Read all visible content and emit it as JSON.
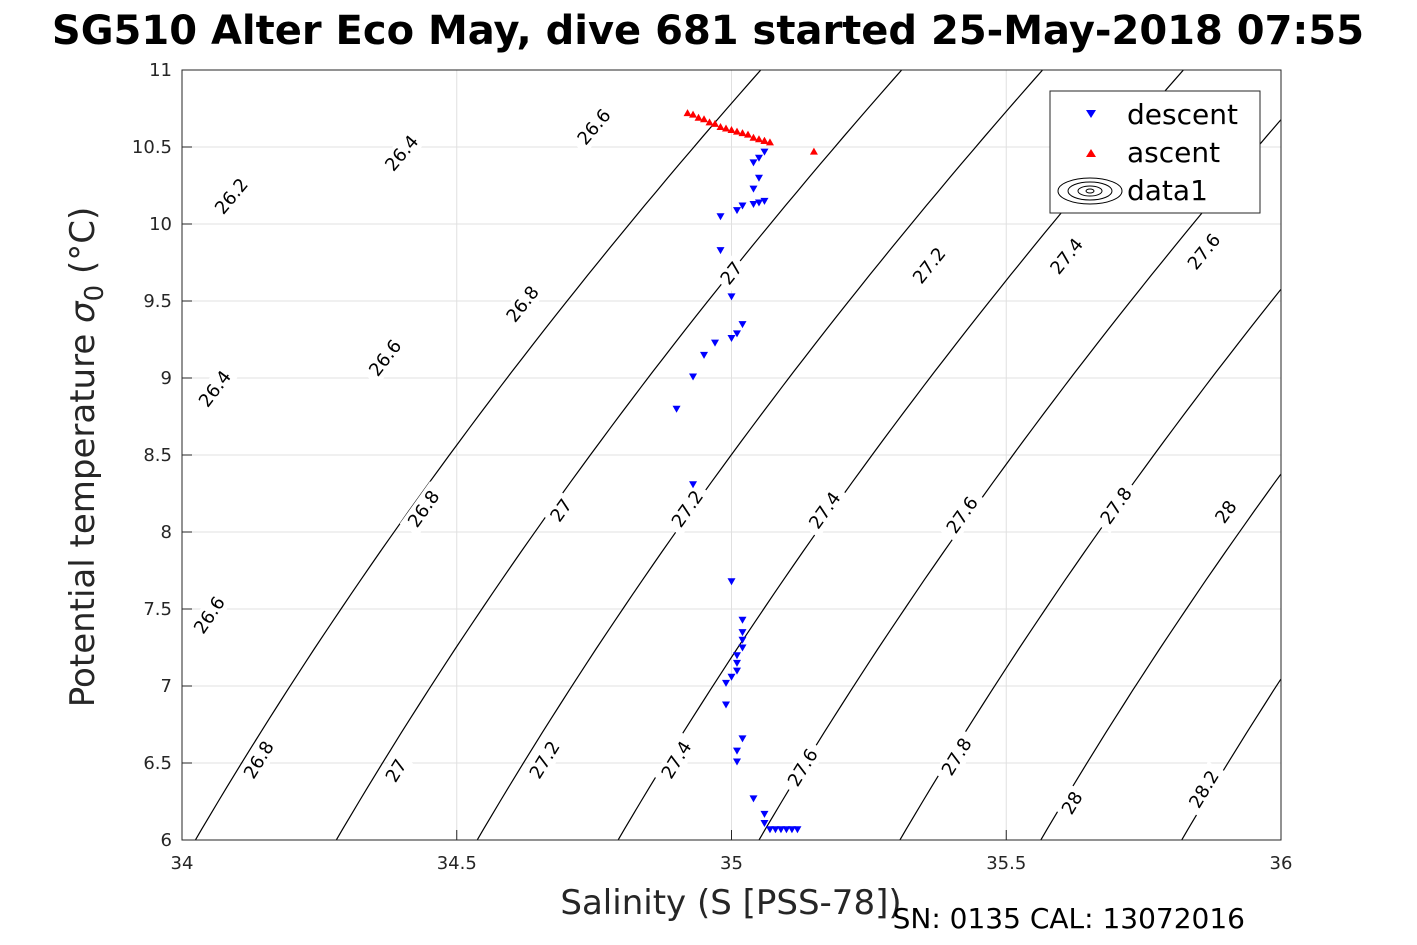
{
  "title": "SG510 Alter Eco May, dive 681 started 25-May-2018 07:55",
  "footer_note": "SN: 0135  CAL: 13072016",
  "chart_data": {
    "type": "scatter",
    "title": "SG510 Alter Eco May, dive 681 started 25-May-2018 07:55",
    "xlabel": "Salinity (S [PSS-78])",
    "ylabel_main": "Potential temperature ",
    "ylabel_sigma": "σ",
    "ylabel_sub": "0",
    "ylabel_unit": " (°C)",
    "xlim": [
      34,
      36
    ],
    "ylim": [
      6,
      11
    ],
    "xticks": [
      34,
      34.5,
      35,
      35.5,
      36
    ],
    "xtick_labels": [
      "34",
      "34.5",
      "35",
      "35.5",
      "36"
    ],
    "yticks": [
      6,
      6.5,
      7,
      7.5,
      8,
      8.5,
      9,
      9.5,
      10,
      10.5,
      11
    ],
    "ytick_labels": [
      "6",
      "6.5",
      "7",
      "7.5",
      "8",
      "8.5",
      "9",
      "9.5",
      "10",
      "10.5",
      "11"
    ],
    "grid": true,
    "legend_position": "top-right",
    "legend": [
      "descent",
      "ascent",
      "data1"
    ],
    "colors": {
      "descent": "#0000ff",
      "ascent": "#ff0000",
      "contour": "#000000",
      "grid": "#e0e0e0"
    },
    "series": [
      {
        "name": "descent",
        "marker": "triangle-down",
        "points": [
          [
            35.06,
            10.47
          ],
          [
            35.05,
            10.43
          ],
          [
            35.04,
            10.4
          ],
          [
            35.05,
            10.3
          ],
          [
            35.04,
            10.23
          ],
          [
            35.06,
            10.15
          ],
          [
            35.05,
            10.14
          ],
          [
            35.04,
            10.13
          ],
          [
            35.02,
            10.12
          ],
          [
            35.01,
            10.09
          ],
          [
            34.98,
            10.05
          ],
          [
            34.98,
            9.83
          ],
          [
            35.0,
            9.53
          ],
          [
            35.02,
            9.35
          ],
          [
            35.01,
            9.29
          ],
          [
            35.0,
            9.26
          ],
          [
            34.97,
            9.23
          ],
          [
            34.95,
            9.15
          ],
          [
            34.93,
            9.01
          ],
          [
            34.9,
            8.8
          ],
          [
            34.93,
            8.31
          ],
          [
            35.0,
            7.68
          ],
          [
            35.02,
            7.43
          ],
          [
            35.02,
            7.35
          ],
          [
            35.02,
            7.3
          ],
          [
            35.02,
            7.25
          ],
          [
            35.01,
            7.2
          ],
          [
            35.01,
            7.15
          ],
          [
            35.01,
            7.1
          ],
          [
            35.0,
            7.06
          ],
          [
            34.99,
            7.02
          ],
          [
            34.99,
            6.88
          ],
          [
            35.02,
            6.66
          ],
          [
            35.01,
            6.58
          ],
          [
            35.01,
            6.51
          ],
          [
            35.04,
            6.27
          ],
          [
            35.06,
            6.17
          ],
          [
            35.06,
            6.11
          ],
          [
            35.07,
            6.07
          ],
          [
            35.08,
            6.07
          ],
          [
            35.09,
            6.07
          ],
          [
            35.1,
            6.07
          ],
          [
            35.11,
            6.07
          ],
          [
            35.12,
            6.07
          ]
        ]
      },
      {
        "name": "ascent",
        "marker": "triangle-up",
        "points": [
          [
            34.92,
            10.72
          ],
          [
            34.93,
            10.71
          ],
          [
            34.94,
            10.69
          ],
          [
            34.95,
            10.68
          ],
          [
            34.96,
            10.66
          ],
          [
            34.97,
            10.65
          ],
          [
            34.98,
            10.63
          ],
          [
            34.99,
            10.62
          ],
          [
            35.0,
            10.61
          ],
          [
            35.01,
            10.6
          ],
          [
            35.02,
            10.59
          ],
          [
            35.03,
            10.58
          ],
          [
            35.04,
            10.56
          ],
          [
            35.05,
            10.55
          ],
          [
            35.06,
            10.54
          ],
          [
            35.07,
            10.53
          ],
          [
            35.06,
            10.54
          ],
          [
            35.15,
            10.47
          ]
        ]
      }
    ],
    "contours": [
      {
        "level": "26.2",
        "labels": []
      },
      {
        "level": "26.4",
        "labels": []
      },
      {
        "level": "26.6",
        "labels": []
      },
      {
        "level": "26.8",
        "labels": []
      },
      {
        "level": "27",
        "labels": []
      },
      {
        "level": "27.2",
        "labels": []
      },
      {
        "level": "27.4",
        "labels": []
      },
      {
        "level": "27.6",
        "labels": []
      },
      {
        "level": "27.8",
        "labels": []
      },
      {
        "level": "28",
        "labels": []
      },
      {
        "level": "28.2",
        "labels": []
      }
    ],
    "contour_label_positions": [
      [
        "26.2",
        34.09,
        10.18
      ],
      [
        "26.4",
        34.4,
        10.46
      ],
      [
        "26.6",
        34.75,
        10.63
      ],
      [
        "26.4",
        34.06,
        8.93
      ],
      [
        "26.6",
        34.37,
        9.13
      ],
      [
        "26.8",
        34.62,
        9.48
      ],
      [
        "27",
        35.0,
        9.68
      ],
      [
        "27.2",
        35.36,
        9.73
      ],
      [
        "27.4",
        35.61,
        9.79
      ],
      [
        "27.6",
        35.86,
        9.82
      ],
      [
        "26.6",
        34.05,
        7.46
      ],
      [
        "26.8",
        34.44,
        8.15
      ],
      [
        "27",
        34.69,
        8.14
      ],
      [
        "27.2",
        34.92,
        8.15
      ],
      [
        "27.4",
        35.17,
        8.14
      ],
      [
        "27.6",
        35.42,
        8.11
      ],
      [
        "27.8",
        35.7,
        8.17
      ],
      [
        "28",
        35.9,
        8.13
      ],
      [
        "26.8",
        34.14,
        6.52
      ],
      [
        "27",
        34.39,
        6.45
      ],
      [
        "27.2",
        34.66,
        6.52
      ],
      [
        "27.4",
        34.9,
        6.52
      ],
      [
        "27.6",
        35.13,
        6.47
      ],
      [
        "27.8",
        35.41,
        6.54
      ],
      [
        "28",
        35.62,
        6.24
      ],
      [
        "28.2",
        35.86,
        6.33
      ]
    ]
  }
}
